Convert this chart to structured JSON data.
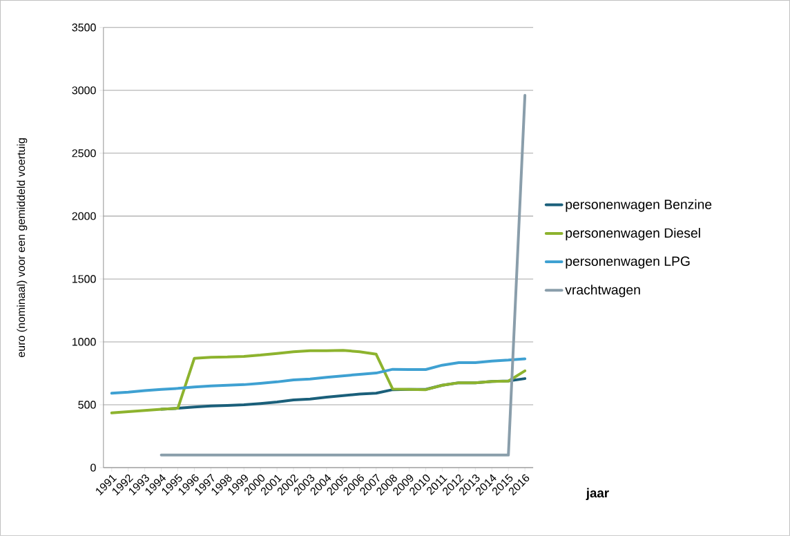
{
  "chart_data": {
    "type": "line",
    "xlabel": "jaar",
    "ylabel": "euro (nominaal) voor een gemiddeld voertuig",
    "categories": [
      "1991",
      "1992",
      "1993",
      "1994",
      "1995",
      "1996",
      "1997",
      "1998",
      "1999",
      "2000",
      "2001",
      "2002",
      "2003",
      "2004",
      "2005",
      "2006",
      "2007",
      "2008",
      "2009",
      "2010",
      "2011",
      "2012",
      "2013",
      "2014",
      "2015",
      "2016"
    ],
    "series": [
      {
        "name": "personenwagen Benzine",
        "color": "#1a5f7a",
        "values": [
          null,
          null,
          null,
          465,
          472,
          482,
          490,
          495,
          500,
          510,
          522,
          538,
          545,
          560,
          573,
          585,
          592,
          620,
          622,
          622,
          655,
          675,
          675,
          685,
          690,
          708
        ]
      },
      {
        "name": "personenwagen Diesel",
        "color": "#8db32e",
        "values": [
          435,
          445,
          455,
          465,
          472,
          870,
          878,
          880,
          885,
          895,
          908,
          922,
          930,
          930,
          932,
          922,
          902,
          625,
          622,
          620,
          655,
          675,
          675,
          685,
          688,
          770
        ]
      },
      {
        "name": "personenwagen LPG",
        "color": "#3fa1d2",
        "values": [
          592,
          600,
          612,
          622,
          630,
          642,
          650,
          655,
          660,
          670,
          682,
          698,
          705,
          718,
          730,
          742,
          752,
          782,
          780,
          780,
          815,
          835,
          835,
          848,
          855,
          865
        ]
      },
      {
        "name": "vrachtwagen",
        "color": "#8a9eab",
        "values": [
          null,
          null,
          null,
          100,
          100,
          100,
          100,
          100,
          100,
          100,
          100,
          100,
          100,
          100,
          100,
          100,
          100,
          100,
          100,
          100,
          100,
          100,
          100,
          100,
          100,
          2960
        ]
      }
    ],
    "ylim": [
      0,
      3500
    ],
    "yticks": [
      0,
      500,
      1000,
      1500,
      2000,
      2500,
      3000,
      3500
    ],
    "grid": "y",
    "legend": "right",
    "marker": "none",
    "line_style": "solid"
  }
}
